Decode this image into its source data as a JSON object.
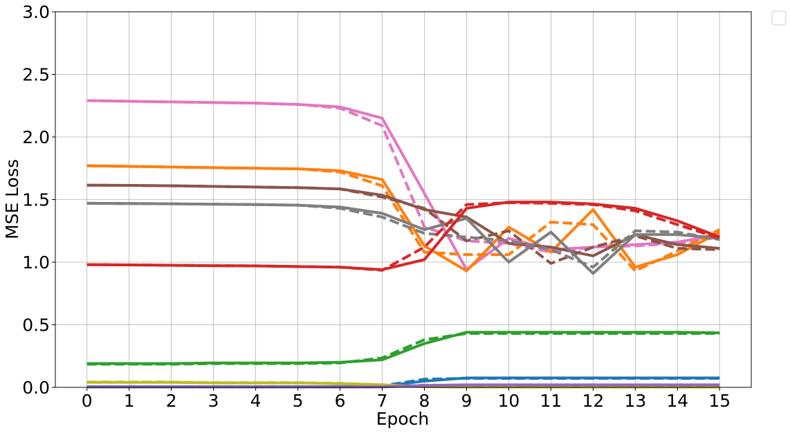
{
  "chart_data": {
    "type": "line",
    "xlabel": "Epoch",
    "ylabel": "MSE Loss",
    "x": [
      0,
      1,
      2,
      3,
      4,
      5,
      6,
      7,
      8,
      9,
      10,
      11,
      12,
      13,
      14,
      15
    ],
    "xlim": [
      -0.75,
      15.75
    ],
    "ylim": [
      0,
      3.0
    ],
    "yticks": [
      0.0,
      0.5,
      1.0,
      1.5,
      2.0,
      2.5,
      3.0
    ],
    "ytick_labels": [
      "0.0",
      "0.5",
      "1.0",
      "1.5",
      "2.0",
      "2.5",
      "3.0"
    ],
    "xtick_labels": [
      "0",
      "1",
      "2",
      "3",
      "4",
      "5",
      "6",
      "7",
      "8",
      "9",
      "10",
      "11",
      "12",
      "13",
      "14",
      "15"
    ],
    "grid": true,
    "legend": "top-right, outside the plot, empty",
    "series": [
      {
        "color": "#e377c2",
        "style": "solid",
        "values": [
          2.29,
          2.285,
          2.28,
          2.275,
          2.27,
          2.26,
          2.24,
          2.15,
          1.55,
          0.94,
          1.19,
          1.1,
          1.12,
          1.14,
          1.16,
          1.22
        ]
      },
      {
        "color": "#e377c2",
        "style": "dashed",
        "values": [
          2.29,
          2.285,
          2.28,
          2.275,
          2.27,
          2.26,
          2.23,
          2.09,
          1.28,
          1.17,
          1.15,
          1.08,
          1.12,
          1.13,
          1.15,
          1.2
        ]
      },
      {
        "color": "#ff7f0e",
        "style": "solid",
        "values": [
          1.77,
          1.765,
          1.76,
          1.755,
          1.75,
          1.745,
          1.73,
          1.66,
          1.13,
          0.93,
          1.28,
          1.08,
          1.42,
          0.96,
          1.06,
          1.24
        ]
      },
      {
        "color": "#ff7f0e",
        "style": "dashed",
        "values": [
          1.77,
          1.765,
          1.76,
          1.755,
          1.75,
          1.745,
          1.72,
          1.61,
          1.08,
          1.06,
          1.06,
          1.32,
          1.3,
          0.93,
          1.09,
          1.26
        ]
      },
      {
        "color": "#8c564b",
        "style": "solid",
        "values": [
          1.615,
          1.613,
          1.61,
          1.605,
          1.6,
          1.595,
          1.585,
          1.535,
          1.42,
          1.36,
          1.15,
          1.12,
          1.05,
          1.22,
          1.14,
          1.11
        ]
      },
      {
        "color": "#8c564b",
        "style": "dashed",
        "values": [
          1.615,
          1.613,
          1.61,
          1.605,
          1.6,
          1.595,
          1.585,
          1.52,
          1.43,
          1.17,
          1.25,
          0.99,
          1.12,
          1.21,
          1.11,
          1.1
        ]
      },
      {
        "color": "#7f7f7f",
        "style": "solid",
        "values": [
          1.47,
          1.468,
          1.466,
          1.463,
          1.46,
          1.455,
          1.44,
          1.39,
          1.26,
          1.35,
          1.0,
          1.24,
          0.91,
          1.22,
          1.22,
          1.19
        ]
      },
      {
        "color": "#7f7f7f",
        "style": "dashed",
        "values": [
          1.47,
          1.468,
          1.466,
          1.463,
          1.46,
          1.455,
          1.43,
          1.36,
          1.23,
          1.2,
          1.17,
          1.1,
          0.96,
          1.25,
          1.24,
          1.18
        ]
      },
      {
        "color": "#d62728",
        "style": "solid",
        "values": [
          0.98,
          0.978,
          0.975,
          0.972,
          0.97,
          0.965,
          0.96,
          0.94,
          1.02,
          1.43,
          1.48,
          1.48,
          1.465,
          1.43,
          1.33,
          1.2
        ]
      },
      {
        "color": "#d62728",
        "style": "dashed",
        "values": [
          0.98,
          0.978,
          0.975,
          0.972,
          0.97,
          0.965,
          0.96,
          0.935,
          1.12,
          1.46,
          1.475,
          1.47,
          1.46,
          1.41,
          1.3,
          1.19
        ]
      },
      {
        "color": "#2ca02c",
        "style": "solid",
        "values": [
          0.19,
          0.19,
          0.19,
          0.195,
          0.195,
          0.195,
          0.2,
          0.22,
          0.35,
          0.44,
          0.44,
          0.44,
          0.44,
          0.44,
          0.44,
          0.435
        ]
      },
      {
        "color": "#2ca02c",
        "style": "dashed",
        "values": [
          0.185,
          0.185,
          0.185,
          0.19,
          0.19,
          0.19,
          0.195,
          0.235,
          0.38,
          0.43,
          0.43,
          0.43,
          0.43,
          0.43,
          0.43,
          0.43
        ]
      },
      {
        "color": "#1f77b4",
        "style": "solid",
        "values": [
          0.005,
          0.005,
          0.005,
          0.005,
          0.005,
          0.005,
          0.006,
          0.01,
          0.05,
          0.075,
          0.075,
          0.075,
          0.075,
          0.075,
          0.075,
          0.075
        ]
      },
      {
        "color": "#1f77b4",
        "style": "dashed",
        "values": [
          0.005,
          0.005,
          0.005,
          0.005,
          0.005,
          0.005,
          0.006,
          0.012,
          0.065,
          0.072,
          0.072,
          0.072,
          0.072,
          0.072,
          0.072,
          0.072
        ]
      },
      {
        "color": "#bcbd22",
        "style": "solid",
        "values": [
          0.04,
          0.04,
          0.04,
          0.035,
          0.035,
          0.035,
          0.03,
          0.02,
          0.005,
          0.003,
          0.003,
          0.003,
          0.003,
          0.003,
          0.003,
          0.003
        ]
      },
      {
        "color": "#bcbd22",
        "style": "dashed",
        "values": [
          0.042,
          0.042,
          0.042,
          0.037,
          0.037,
          0.037,
          0.032,
          0.02,
          0.006,
          0.004,
          0.004,
          0.004,
          0.004,
          0.004,
          0.004,
          0.004
        ]
      },
      {
        "color": "#9467bd",
        "style": "solid",
        "values": [
          0.003,
          0.003,
          0.003,
          0.003,
          0.003,
          0.003,
          0.003,
          0.004,
          0.015,
          0.02,
          0.02,
          0.02,
          0.02,
          0.02,
          0.02,
          0.02
        ]
      },
      {
        "color": "#9467bd",
        "style": "dashed",
        "values": [
          0.003,
          0.003,
          0.003,
          0.003,
          0.003,
          0.003,
          0.003,
          0.004,
          0.017,
          0.018,
          0.018,
          0.018,
          0.018,
          0.018,
          0.018,
          0.018
        ]
      }
    ]
  }
}
